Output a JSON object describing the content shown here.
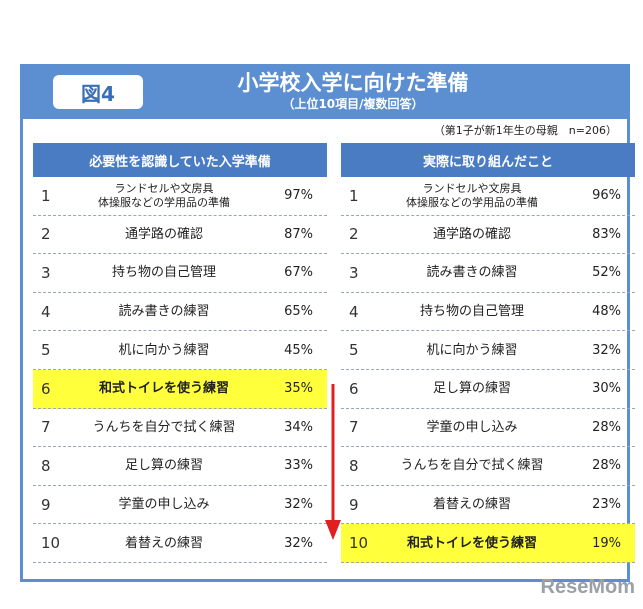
{
  "figure_label": "図4",
  "title": "小学校入学に向けた準備",
  "subtitle": "（上位10項目/複数回答）",
  "sample_note": "（第1子が新1年生の母親　n=206）",
  "logo_text": "ReseMom",
  "colors": {
    "frame": "#5b8fd1",
    "column_header": "#4a7cc4",
    "highlight": "#ffff3c",
    "arrow": "#e02020"
  },
  "chart_data": {
    "type": "table",
    "tables": [
      {
        "header": "必要性を認識していた入学準備",
        "rows": [
          {
            "rank": "1",
            "item": [
              "ランドセルや文房具",
              "体操服などの学用品の準備"
            ],
            "value": "97%",
            "highlight": false
          },
          {
            "rank": "2",
            "item": [
              "通学路の確認"
            ],
            "value": "87%",
            "highlight": false
          },
          {
            "rank": "3",
            "item": [
              "持ち物の自己管理"
            ],
            "value": "67%",
            "highlight": false
          },
          {
            "rank": "4",
            "item": [
              "読み書きの練習"
            ],
            "value": "65%",
            "highlight": false
          },
          {
            "rank": "5",
            "item": [
              "机に向かう練習"
            ],
            "value": "45%",
            "highlight": false
          },
          {
            "rank": "6",
            "item": [
              "和式トイレを使う練習"
            ],
            "value": "35%",
            "highlight": true
          },
          {
            "rank": "7",
            "item": [
              "うんちを自分で拭く練習"
            ],
            "value": "34%",
            "highlight": false
          },
          {
            "rank": "8",
            "item": [
              "足し算の練習"
            ],
            "value": "33%",
            "highlight": false
          },
          {
            "rank": "9",
            "item": [
              "学童の申し込み"
            ],
            "value": "32%",
            "highlight": false
          },
          {
            "rank": "10",
            "item": [
              "着替えの練習"
            ],
            "value": "32%",
            "highlight": false
          }
        ]
      },
      {
        "header": "実際に取り組んだこと",
        "rows": [
          {
            "rank": "1",
            "item": [
              "ランドセルや文房具",
              "体操服などの学用品の準備"
            ],
            "value": "96%",
            "highlight": false
          },
          {
            "rank": "2",
            "item": [
              "通学路の確認"
            ],
            "value": "83%",
            "highlight": false
          },
          {
            "rank": "3",
            "item": [
              "読み書きの練習"
            ],
            "value": "52%",
            "highlight": false
          },
          {
            "rank": "4",
            "item": [
              "持ち物の自己管理"
            ],
            "value": "48%",
            "highlight": false
          },
          {
            "rank": "5",
            "item": [
              "机に向かう練習"
            ],
            "value": "32%",
            "highlight": false
          },
          {
            "rank": "6",
            "item": [
              "足し算の練習"
            ],
            "value": "30%",
            "highlight": false
          },
          {
            "rank": "7",
            "item": [
              "学童の申し込み"
            ],
            "value": "28%",
            "highlight": false
          },
          {
            "rank": "8",
            "item": [
              "うんちを自分で拭く練習"
            ],
            "value": "28%",
            "highlight": false
          },
          {
            "rank": "9",
            "item": [
              "着替えの練習"
            ],
            "value": "23%",
            "highlight": false
          },
          {
            "rank": "10",
            "item": [
              "和式トイレを使う練習"
            ],
            "value": "19%",
            "highlight": true
          }
        ]
      }
    ]
  }
}
